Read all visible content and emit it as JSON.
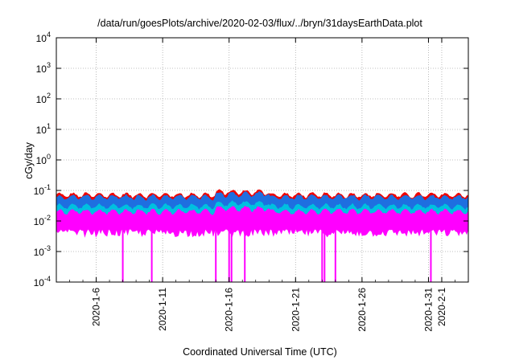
{
  "chart_data": {
    "type": "area",
    "title": "/data/run/goesPlots/archive/2020-02-03/flux/../bryn/31daysEarthData.plot",
    "xlabel": "Coordinated Universal Time (UTC)",
    "ylabel": "cGy/day",
    "y_scale": "log",
    "ylim": [
      0.0001,
      10000
    ],
    "xlim": [
      "2020-01-03",
      "2020-02-03"
    ],
    "grid": true,
    "legend": "none",
    "y_ticks": [
      {
        "value": 0.0001,
        "base": "10",
        "exp": "-4"
      },
      {
        "value": 0.001,
        "base": "10",
        "exp": "-3"
      },
      {
        "value": 0.01,
        "base": "10",
        "exp": "-2"
      },
      {
        "value": 0.1,
        "base": "10",
        "exp": "-1"
      },
      {
        "value": 1,
        "base": "10",
        "exp": "0"
      },
      {
        "value": 10,
        "base": "10",
        "exp": "1"
      },
      {
        "value": 100,
        "base": "10",
        "exp": "2"
      },
      {
        "value": 1000,
        "base": "10",
        "exp": "3"
      },
      {
        "value": 10000,
        "base": "10",
        "exp": "4"
      }
    ],
    "x_ticks": [
      {
        "label": "2020-1-6",
        "date": "2020-01-06"
      },
      {
        "label": "2020-1-11",
        "date": "2020-01-11"
      },
      {
        "label": "2020-1-16",
        "date": "2020-01-16"
      },
      {
        "label": "2020-1-21",
        "date": "2020-01-21"
      },
      {
        "label": "2020-1-26",
        "date": "2020-01-26"
      },
      {
        "label": "2020-1-31",
        "date": "2020-01-31"
      },
      {
        "label": "2020-2-1",
        "date": "2020-02-01"
      }
    ],
    "x_start": "2020-01-03",
    "x_end": "2020-02-03",
    "series": [
      {
        "color": "#ee0000",
        "typical_max": 0.07,
        "typical_min": 0.02
      },
      {
        "color": "#00aa44",
        "typical_max": 0.05,
        "typical_min": 0.015
      },
      {
        "color": "#1e6fe0",
        "typical_max": 0.06,
        "typical_min": 0.012
      },
      {
        "color": "#00c0e0",
        "typical_max": 0.03,
        "typical_min": 0.01
      },
      {
        "color": "#ff00ff",
        "typical_max": 0.02,
        "typical_min": 0.005
      }
    ],
    "dropouts": [
      "2020-01-08",
      "2020-01-10",
      "2020-01-15",
      "2020-01-16",
      "2020-01-16",
      "2020-01-17",
      "2020-01-23",
      "2020-01-23",
      "2020-01-24",
      "2020-01-31"
    ]
  }
}
